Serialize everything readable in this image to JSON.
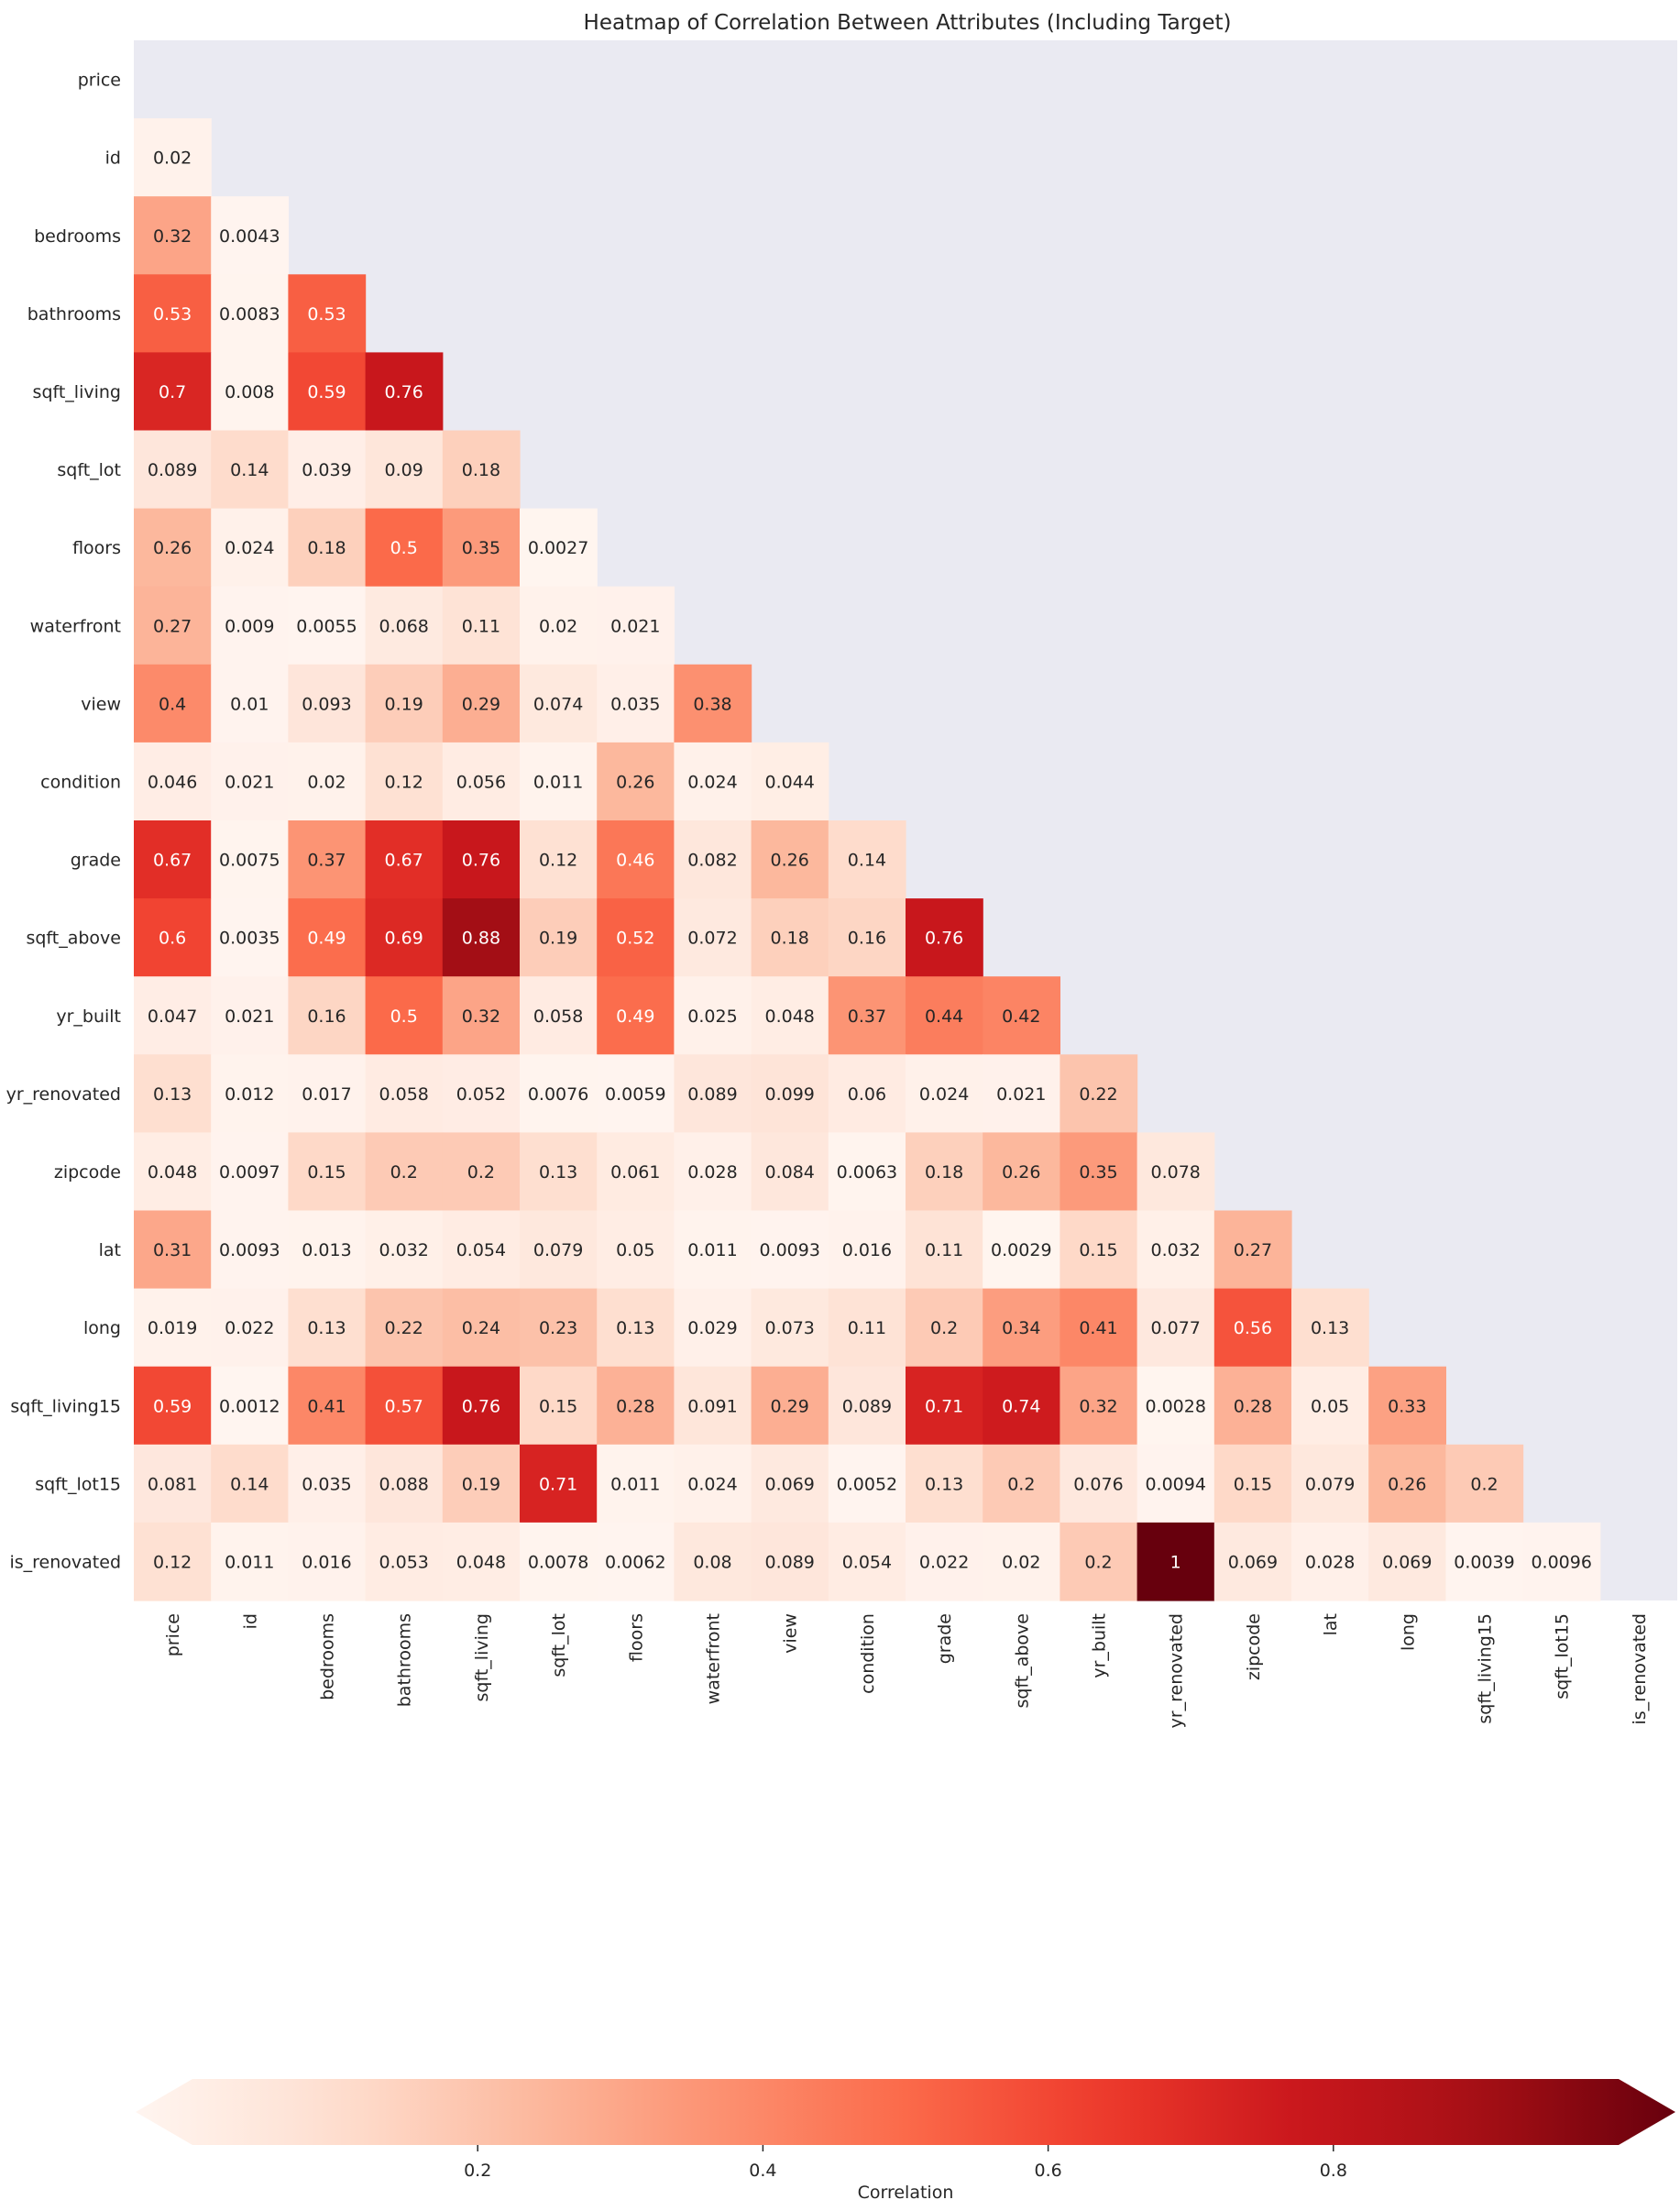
{
  "chart_data": {
    "type": "heatmap",
    "title": "Heatmap of Correlation Between Attributes (Including Target)",
    "variables": [
      "price",
      "id",
      "bedrooms",
      "bathrooms",
      "sqft_living",
      "sqft_lot",
      "floors",
      "waterfront",
      "view",
      "condition",
      "grade",
      "sqft_above",
      "yr_built",
      "yr_renovated",
      "zipcode",
      "lat",
      "long",
      "sqft_living15",
      "sqft_lot15",
      "is_renovated"
    ],
    "matrix_lower_triangle": [
      [],
      [
        0.02
      ],
      [
        0.32,
        0.0043
      ],
      [
        0.53,
        0.0083,
        0.53
      ],
      [
        0.7,
        0.008,
        0.59,
        0.76
      ],
      [
        0.089,
        0.14,
        0.039,
        0.09,
        0.18
      ],
      [
        0.26,
        0.024,
        0.18,
        0.5,
        0.35,
        0.0027
      ],
      [
        0.27,
        0.009,
        0.0055,
        0.068,
        0.11,
        0.02,
        0.021
      ],
      [
        0.4,
        0.01,
        0.093,
        0.19,
        0.29,
        0.074,
        0.035,
        0.38
      ],
      [
        0.046,
        0.021,
        0.02,
        0.12,
        0.056,
        0.011,
        0.26,
        0.024,
        0.044
      ],
      [
        0.67,
        0.0075,
        0.37,
        0.67,
        0.76,
        0.12,
        0.46,
        0.082,
        0.26,
        0.14
      ],
      [
        0.6,
        0.0035,
        0.49,
        0.69,
        0.88,
        0.19,
        0.52,
        0.072,
        0.18,
        0.16,
        0.76
      ],
      [
        0.047,
        0.021,
        0.16,
        0.5,
        0.32,
        0.058,
        0.49,
        0.025,
        0.048,
        0.37,
        0.44,
        0.42
      ],
      [
        0.13,
        0.012,
        0.017,
        0.058,
        0.052,
        0.0076,
        0.0059,
        0.089,
        0.099,
        0.06,
        0.024,
        0.021,
        0.22
      ],
      [
        0.048,
        0.0097,
        0.15,
        0.2,
        0.2,
        0.13,
        0.061,
        0.028,
        0.084,
        0.0063,
        0.18,
        0.26,
        0.35,
        0.078
      ],
      [
        0.31,
        0.0093,
        0.013,
        0.032,
        0.054,
        0.079,
        0.05,
        0.011,
        0.0093,
        0.016,
        0.11,
        0.0029,
        0.15,
        0.032,
        0.27
      ],
      [
        0.019,
        0.022,
        0.13,
        0.22,
        0.24,
        0.23,
        0.13,
        0.029,
        0.073,
        0.11,
        0.2,
        0.34,
        0.41,
        0.077,
        0.56,
        0.13
      ],
      [
        0.59,
        0.0012,
        0.41,
        0.57,
        0.76,
        0.15,
        0.28,
        0.091,
        0.29,
        0.089,
        0.71,
        0.74,
        0.32,
        0.0028,
        0.28,
        0.05,
        0.33
      ],
      [
        0.081,
        0.14,
        0.035,
        0.088,
        0.19,
        0.71,
        0.011,
        0.024,
        0.069,
        0.0052,
        0.13,
        0.2,
        0.076,
        0.0094,
        0.15,
        0.079,
        0.26,
        0.2
      ],
      [
        0.12,
        0.011,
        0.016,
        0.053,
        0.048,
        0.0078,
        0.0062,
        0.08,
        0.089,
        0.054,
        0.022,
        0.02,
        0.2,
        1,
        0.069,
        0.028,
        0.069,
        0.0039,
        0.0096
      ]
    ],
    "mask": "upper triangle including diagonal",
    "colormap": "Reds",
    "color_range": [
      0,
      1
    ],
    "colorbar": {
      "label": "Correlation",
      "orientation": "horizontal",
      "placement": "bottom",
      "extend": "both",
      "ticks": [
        0.2,
        0.4,
        0.6,
        0.8
      ],
      "tick_labels": [
        "0.2",
        "0.4",
        "0.6",
        "0.8"
      ]
    },
    "background_color": "#EAEAF2"
  }
}
